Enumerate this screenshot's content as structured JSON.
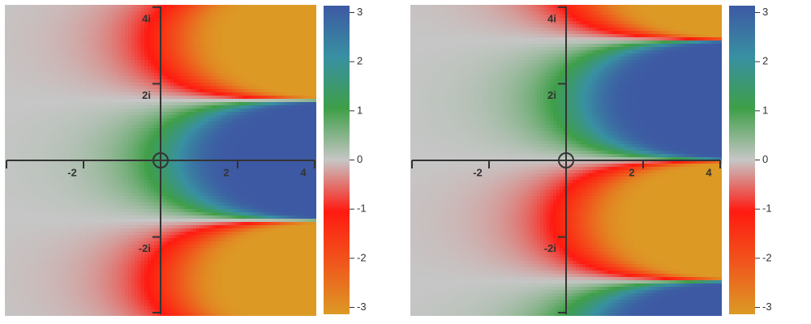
{
  "chart_data": [
    {
      "type": "heatmap",
      "xlim": [
        -4,
        4
      ],
      "ylim": [
        -4.06,
        4.06
      ],
      "xticks": [
        -2,
        2,
        4
      ],
      "yticks": [
        {
          "value": 4,
          "label": "4i"
        },
        {
          "value": 2,
          "label": "2i"
        },
        {
          "value": -2,
          "label": "-2i"
        }
      ],
      "zlim": [
        -3.14,
        3.14
      ],
      "zticks": [
        -3,
        -2,
        -1,
        0,
        1,
        2,
        3
      ],
      "colors": [
        "#dc9a25",
        "#f0561c",
        "#ff1a10",
        "#c6c6c6",
        "#3f9f48",
        "#3890a2",
        "#3d59a3"
      ]
    },
    {
      "type": "heatmap",
      "xlim": [
        -4,
        4
      ],
      "ylim": [
        -4.06,
        4.06
      ],
      "xticks": [
        -2,
        2,
        4
      ],
      "yticks": [
        {
          "value": 4,
          "label": "4i"
        },
        {
          "value": 2,
          "label": "2i"
        },
        {
          "value": -2,
          "label": "-2i"
        }
      ],
      "zlim": [
        -3.14,
        3.14
      ],
      "zticks": [
        -3,
        -2,
        -1,
        0,
        1,
        2,
        3
      ],
      "colors": [
        "#dc9a25",
        "#f0561c",
        "#ff1a10",
        "#c6c6c6",
        "#3f9f48",
        "#3890a2",
        "#3d59a3"
      ]
    }
  ]
}
